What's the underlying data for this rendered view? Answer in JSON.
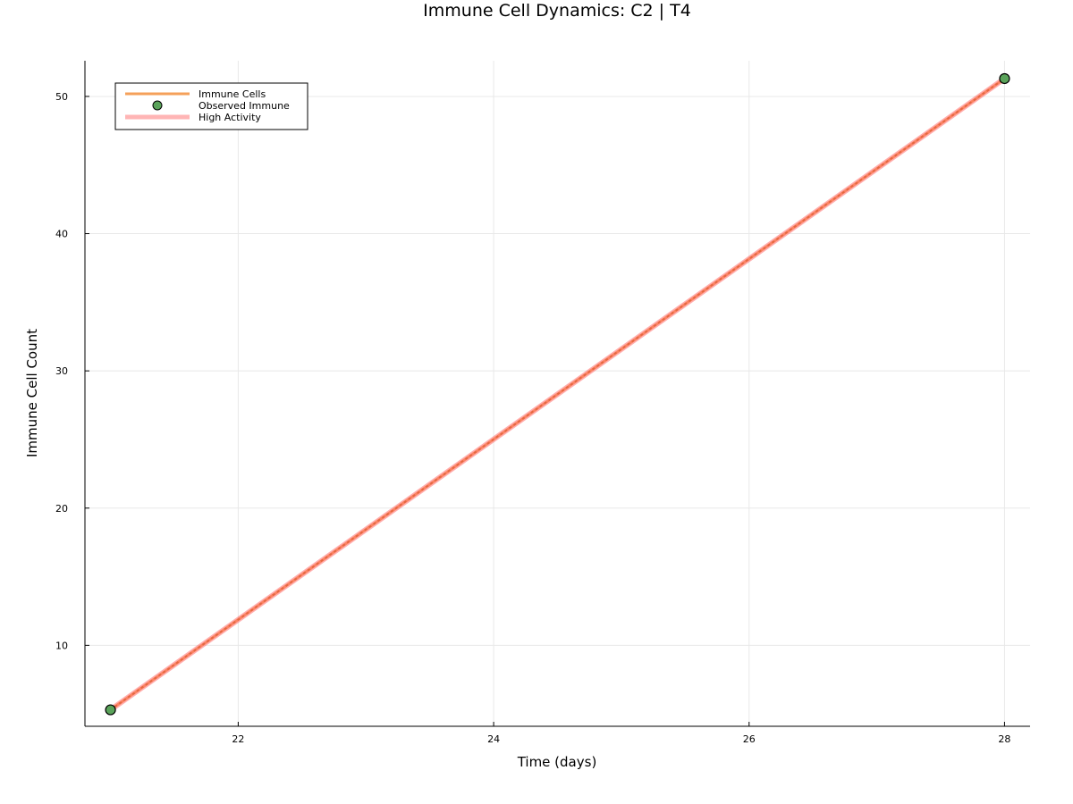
{
  "chart_data": {
    "type": "line",
    "title": "Immune Cell Dynamics: C2 | T4",
    "xlabel": "Time (days)",
    "ylabel": "Immune Cell Count",
    "xlim": [
      20.8,
      28.2
    ],
    "ylim": [
      4.1,
      52.6
    ],
    "xticks": [
      22,
      24,
      26,
      28
    ],
    "yticks": [
      10,
      20,
      30,
      40,
      50
    ],
    "grid": true,
    "legend_position": "top-left",
    "series": [
      {
        "name": "Immune Cells",
        "kind": "line",
        "color": "#f5a05a",
        "x": [
          21,
          28
        ],
        "y": [
          5.3,
          51.3
        ]
      },
      {
        "name": "Observed Immune",
        "kind": "scatter",
        "color": "#5aa35a",
        "x": [
          21,
          28
        ],
        "y": [
          5.3,
          51.3
        ]
      },
      {
        "name": "High Activity",
        "kind": "line",
        "color": "#ff6b6b",
        "x": [
          21,
          28
        ],
        "y": [
          5.3,
          51.3
        ]
      }
    ]
  }
}
